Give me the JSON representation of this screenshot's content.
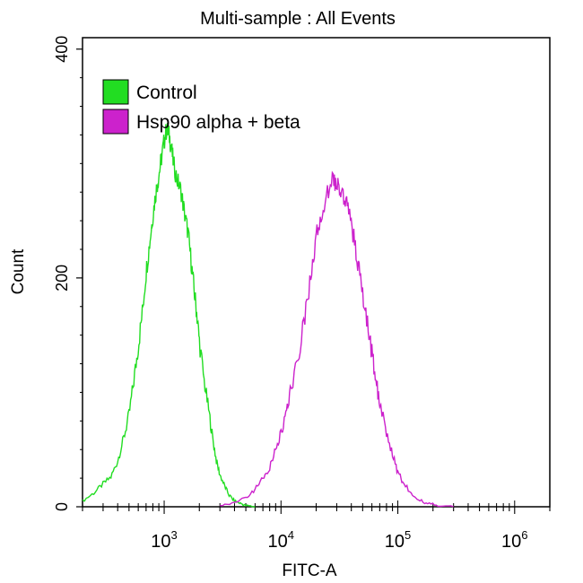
{
  "chart_data": {
    "type": "line",
    "title": "Multi-sample : All Events",
    "xlabel": "FITC-A",
    "ylabel": "Count",
    "xscale": "log",
    "xlim": [
      200,
      2000000
    ],
    "ylim": [
      0,
      410
    ],
    "x_ticks": [
      {
        "value": 1000,
        "base": "10",
        "exp": "3"
      },
      {
        "value": 10000,
        "base": "10",
        "exp": "4"
      },
      {
        "value": 100000,
        "base": "10",
        "exp": "5"
      },
      {
        "value": 1000000,
        "base": "10",
        "exp": "6"
      }
    ],
    "y_ticks": [
      {
        "value": 0,
        "label": "0"
      },
      {
        "value": 200,
        "label": "200"
      },
      {
        "value": 400,
        "label": "400"
      }
    ],
    "legend_position": "top-left",
    "series": [
      {
        "name": "Control",
        "color": "#22dd22",
        "x": [
          200,
          250,
          300,
          350,
          400,
          450,
          500,
          550,
          600,
          650,
          700,
          750,
          800,
          850,
          900,
          950,
          1000,
          1050,
          1100,
          1150,
          1200,
          1300,
          1400,
          1500,
          1600,
          1700,
          1800,
          1900,
          2000,
          2200,
          2400,
          2600,
          2800,
          3000,
          3300,
          3600,
          4000,
          4500,
          5000,
          6000
        ],
        "values": [
          5,
          12,
          20,
          26,
          40,
          60,
          80,
          110,
          140,
          170,
          205,
          230,
          255,
          275,
          290,
          305,
          320,
          330,
          325,
          315,
          300,
          285,
          275,
          255,
          240,
          215,
          190,
          170,
          145,
          110,
          85,
          60,
          40,
          28,
          18,
          10,
          5,
          3,
          1,
          0
        ]
      },
      {
        "name": "Hsp90 alpha + beta",
        "color": "#cc22cc",
        "x": [
          3000,
          4000,
          5000,
          6000,
          7000,
          8000,
          9000,
          10000,
          11000,
          12000,
          14000,
          16000,
          18000,
          20000,
          22000,
          25000,
          28000,
          30000,
          32000,
          35000,
          38000,
          42000,
          46000,
          50000,
          55000,
          60000,
          65000,
          70000,
          80000,
          90000,
          100000,
          110000,
          130000,
          150000,
          180000,
          220000,
          300000
        ],
        "values": [
          1,
          3,
          8,
          15,
          25,
          35,
          50,
          65,
          80,
          100,
          130,
          165,
          200,
          235,
          255,
          275,
          285,
          282,
          278,
          270,
          255,
          235,
          210,
          185,
          160,
          135,
          110,
          90,
          65,
          45,
          30,
          22,
          12,
          6,
          3,
          1,
          0
        ]
      }
    ]
  }
}
